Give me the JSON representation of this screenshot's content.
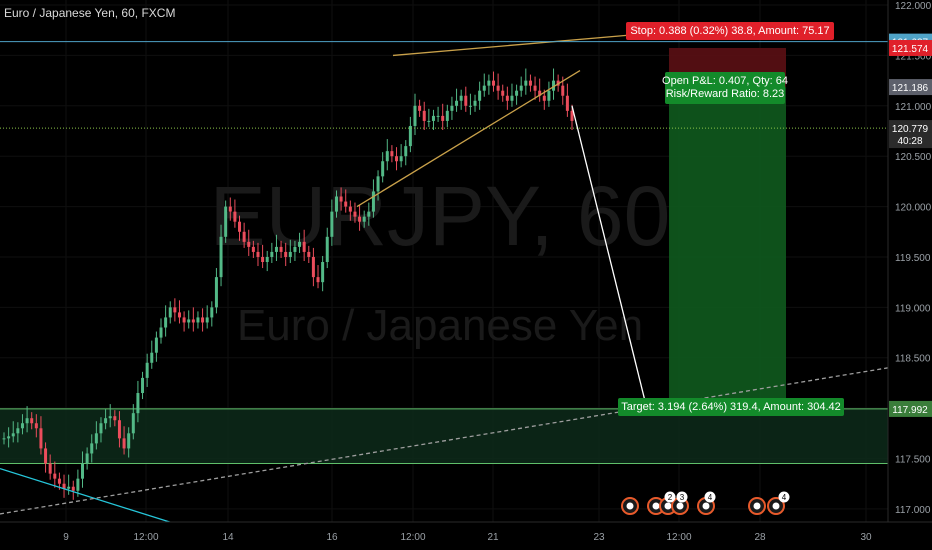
{
  "header": {
    "title": "Euro / Japanese Yen, 60, FXCM"
  },
  "watermark": {
    "symbol": "EURJPY, 60",
    "name": "Euro / Japanese Yen"
  },
  "chart_data": {
    "type": "candlestick",
    "symbol": "EURJPY",
    "timeframe": "60",
    "ylim": [
      116.87,
      122.05
    ],
    "y_ticks": [
      "122.000",
      "121.500",
      "121.000",
      "120.500",
      "120.000",
      "119.500",
      "119.000",
      "118.500",
      "118.000",
      "117.500",
      "117.000"
    ],
    "x_ticks": [
      "9",
      "12:00",
      "14",
      "16",
      "12:00",
      "21",
      "23",
      "12:00",
      "28",
      "30"
    ],
    "price_labels": [
      {
        "value": 121.637,
        "text": "121.637",
        "color": "#4fa3c7"
      },
      {
        "value": 121.574,
        "text": "121.574",
        "color": "#e0202a"
      },
      {
        "value": 121.186,
        "text": "121.186",
        "color": "#5d606b"
      },
      {
        "value": 120.779,
        "text": "120.779",
        "color": "#2b2b2b"
      },
      {
        "value": 120.66,
        "text": "40:28",
        "color": "#2b2b2b"
      },
      {
        "value": 117.992,
        "text": "117.992",
        "color": "#3a7d3a"
      }
    ],
    "series": [
      {
        "name": "EURJPY",
        "ohlc_mid": [
          117.7,
          117.72,
          117.75,
          117.8,
          117.85,
          117.9,
          117.85,
          117.8,
          117.6,
          117.45,
          117.35,
          117.3,
          117.25,
          117.2,
          117.22,
          117.18,
          117.3,
          117.45,
          117.55,
          117.65,
          117.75,
          117.85,
          117.9,
          117.92,
          117.88,
          117.7,
          117.6,
          117.75,
          117.95,
          118.15,
          118.3,
          118.45,
          118.55,
          118.7,
          118.8,
          118.9,
          119.0,
          118.95,
          118.9,
          118.85,
          118.88,
          118.85,
          118.9,
          118.85,
          118.9,
          119.0,
          119.3,
          119.7,
          120.0,
          119.95,
          119.85,
          119.75,
          119.65,
          119.6,
          119.55,
          119.5,
          119.45,
          119.5,
          119.55,
          119.6,
          119.55,
          119.5,
          119.55,
          119.6,
          119.65,
          119.55,
          119.5,
          119.3,
          119.25,
          119.45,
          119.7,
          119.95,
          120.1,
          120.05,
          120.0,
          119.95,
          119.9,
          119.85,
          119.9,
          119.95,
          120.15,
          120.3,
          120.45,
          120.55,
          120.5,
          120.45,
          120.5,
          120.6,
          120.8,
          121.0,
          120.95,
          120.85,
          120.85,
          120.9,
          120.9,
          120.85,
          120.95,
          121.0,
          121.05,
          121.1,
          121.0,
          121.0,
          121.05,
          121.15,
          121.2,
          121.25,
          121.2,
          121.15,
          121.1,
          121.05,
          121.1,
          121.15,
          121.2,
          121.25,
          121.2,
          121.15,
          121.1,
          121.05,
          121.15,
          121.25,
          121.2,
          121.1,
          120.95,
          120.85
        ]
      }
    ],
    "lines": [
      {
        "kind": "support-trend",
        "color": "#26c6da",
        "from": [
          "9",
          117.4
        ],
        "to": [
          "14",
          116.8
        ]
      },
      {
        "kind": "dashed-trend",
        "color": "#9e9e9e",
        "from": [
          "9",
          116.95
        ],
        "to": [
          "30",
          118.4
        ]
      },
      {
        "kind": "wedge-upper",
        "color": "#c9a14a",
        "from": [
          "16",
          121.5
        ],
        "to": [
          "23",
          121.7
        ]
      },
      {
        "kind": "wedge-lower",
        "color": "#c9a14a",
        "from": [
          "16",
          120.0
        ],
        "to": [
          "23",
          121.35
        ]
      },
      {
        "kind": "projection-arrow",
        "color": "#ffffff",
        "from": [
          "23",
          121.0
        ],
        "to": [
          "23",
          117.95
        ]
      }
    ],
    "zones": [
      {
        "kind": "support-box",
        "top": 117.992,
        "bottom": 117.45
      }
    ],
    "position": {
      "type": "short",
      "entry": 121.186,
      "stop": 121.574,
      "target": 117.992,
      "stop_label": "Stop: 0.388 (0.32%) 38.8, Amount: 75.17",
      "target_label": "Target: 3.194 (2.64%) 319.4, Amount: 304.42",
      "pnl_label": "Open P&L: 0.407, Qty: 64",
      "rr_label": "Risk/Reward Ratio: 8.23"
    },
    "event_icons": [
      "2",
      "3",
      "4",
      "4"
    ]
  }
}
